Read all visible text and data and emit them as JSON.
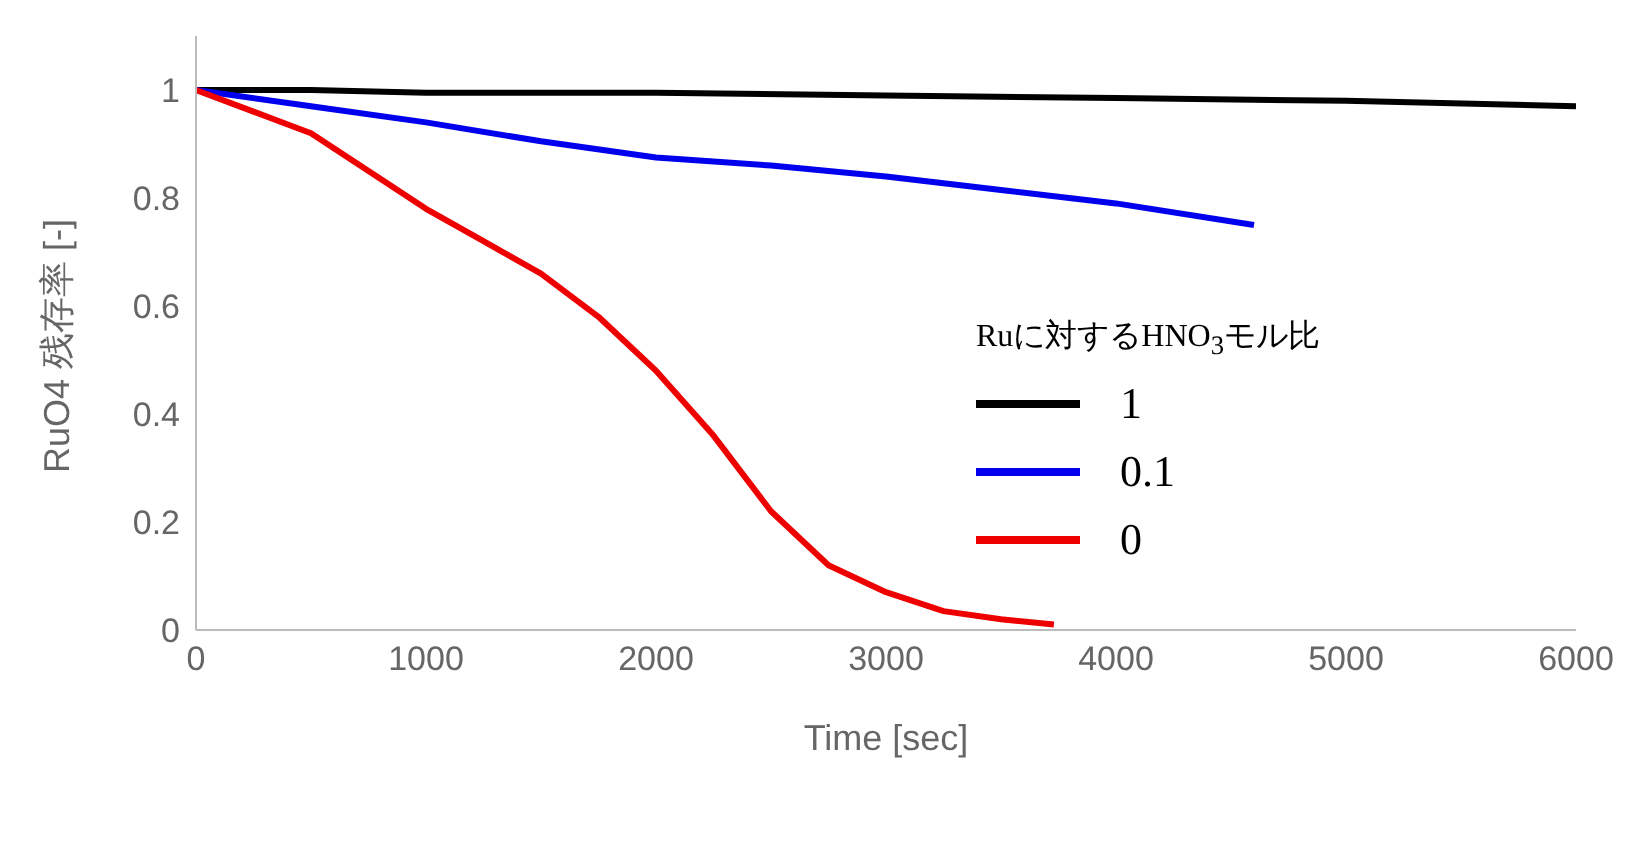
{
  "chart_data": {
    "type": "line",
    "xlabel": "Time [sec]",
    "ylabel": "RuO4 残存率 [-]",
    "legend_title": "Ruに対するHNO$_{3}$モル比",
    "xlim": [
      0,
      6000
    ],
    "xticks": [
      0,
      1000,
      2000,
      3000,
      4000,
      5000,
      6000
    ],
    "ylim": [
      0,
      1.1
    ],
    "yticks": [
      0,
      0.2,
      0.4,
      0.6,
      0.8,
      1
    ],
    "grid": false,
    "legend": "right",
    "marker": "none",
    "line_style": "solid",
    "series": [
      {
        "name": "1",
        "color": "#000000",
        "x": [
          0,
          500,
          1000,
          2000,
          3000,
          4000,
          5000,
          6000
        ],
        "values": [
          1,
          1,
          0.995,
          0.995,
          0.99,
          0.985,
          0.98,
          0.97
        ]
      },
      {
        "name": "0.1",
        "color": "#0000ee",
        "x": [
          0,
          500,
          1000,
          1500,
          2000,
          2500,
          3000,
          3500,
          4000,
          4600
        ],
        "values": [
          1,
          0.97,
          0.94,
          0.905,
          0.875,
          0.86,
          0.84,
          0.815,
          0.79,
          0.75
        ]
      },
      {
        "name": "0",
        "color": "#ee0000",
        "x": [
          0,
          250,
          500,
          750,
          1000,
          1250,
          1500,
          1750,
          2000,
          2250,
          2500,
          2750,
          3000,
          3250,
          3500,
          3730
        ],
        "values": [
          1,
          0.96,
          0.92,
          0.85,
          0.78,
          0.72,
          0.66,
          0.58,
          0.48,
          0.36,
          0.22,
          0.12,
          0.07,
          0.035,
          0.02,
          0.01
        ]
      }
    ]
  }
}
